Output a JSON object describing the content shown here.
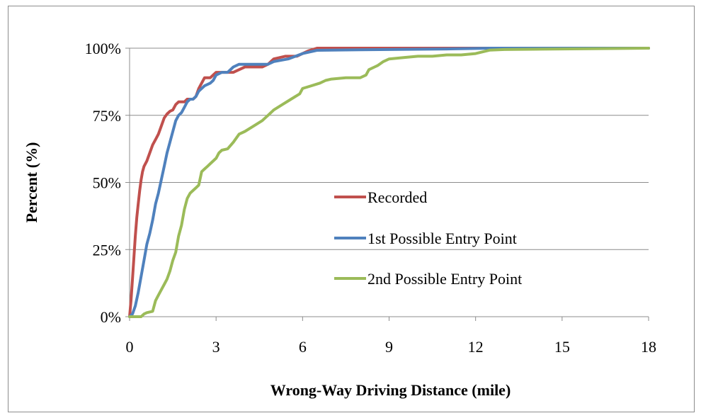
{
  "chart_data": {
    "type": "line",
    "title": "",
    "xlabel": "Wrong-Way Driving Distance (mile)",
    "ylabel": "Percent (%)",
    "xlim": [
      0,
      18
    ],
    "ylim": [
      0,
      100
    ],
    "xticks": [
      0,
      3,
      6,
      9,
      12,
      15,
      18
    ],
    "yticks": [
      0,
      25,
      50,
      75,
      100
    ],
    "x_tick_labels": [
      "0",
      "3",
      "6",
      "9",
      "12",
      "15",
      "18"
    ],
    "y_tick_labels": [
      "0%",
      "25%",
      "50%",
      "75%",
      "100%"
    ],
    "grid": "horizontal",
    "legend_position": "center-right",
    "series": [
      {
        "name": "Recorded",
        "color": "#c0504d",
        "points": [
          [
            0,
            0
          ],
          [
            0.05,
            6
          ],
          [
            0.1,
            14
          ],
          [
            0.15,
            22
          ],
          [
            0.2,
            30
          ],
          [
            0.25,
            37
          ],
          [
            0.3,
            42
          ],
          [
            0.35,
            47
          ],
          [
            0.4,
            51
          ],
          [
            0.45,
            54
          ],
          [
            0.5,
            56
          ],
          [
            0.6,
            58
          ],
          [
            0.7,
            61
          ],
          [
            0.8,
            64
          ],
          [
            0.9,
            66
          ],
          [
            1.0,
            68
          ],
          [
            1.1,
            71
          ],
          [
            1.2,
            74
          ],
          [
            1.3,
            75.5
          ],
          [
            1.4,
            76.5
          ],
          [
            1.5,
            77
          ],
          [
            1.6,
            79
          ],
          [
            1.7,
            80
          ],
          [
            1.8,
            80
          ],
          [
            1.9,
            80
          ],
          [
            2.0,
            81
          ],
          [
            2.1,
            81
          ],
          [
            2.2,
            81
          ],
          [
            2.3,
            82
          ],
          [
            2.4,
            85
          ],
          [
            2.5,
            87
          ],
          [
            2.6,
            89
          ],
          [
            2.7,
            89
          ],
          [
            2.8,
            89
          ],
          [
            2.9,
            90
          ],
          [
            3.0,
            91
          ],
          [
            3.2,
            91
          ],
          [
            3.4,
            91
          ],
          [
            3.6,
            91
          ],
          [
            3.8,
            92
          ],
          [
            4.0,
            93
          ],
          [
            4.2,
            93
          ],
          [
            4.4,
            93
          ],
          [
            4.6,
            93
          ],
          [
            4.8,
            94
          ],
          [
            5.0,
            96
          ],
          [
            5.2,
            96.5
          ],
          [
            5.4,
            97
          ],
          [
            5.6,
            97
          ],
          [
            5.8,
            97
          ],
          [
            6.0,
            98
          ],
          [
            6.2,
            99
          ],
          [
            6.5,
            100
          ],
          [
            18,
            100
          ]
        ]
      },
      {
        "name": "1st Possible Entry Point",
        "color": "#4f81bd",
        "points": [
          [
            0,
            0
          ],
          [
            0.1,
            1
          ],
          [
            0.2,
            4
          ],
          [
            0.3,
            9
          ],
          [
            0.4,
            15
          ],
          [
            0.5,
            21
          ],
          [
            0.6,
            27
          ],
          [
            0.7,
            31
          ],
          [
            0.8,
            36
          ],
          [
            0.9,
            42
          ],
          [
            1.0,
            46
          ],
          [
            1.1,
            51
          ],
          [
            1.2,
            56
          ],
          [
            1.3,
            61
          ],
          [
            1.4,
            65
          ],
          [
            1.5,
            69
          ],
          [
            1.6,
            73
          ],
          [
            1.7,
            75
          ],
          [
            1.8,
            76
          ],
          [
            1.9,
            78
          ],
          [
            2.0,
            80
          ],
          [
            2.1,
            81
          ],
          [
            2.2,
            81
          ],
          [
            2.3,
            82
          ],
          [
            2.4,
            84
          ],
          [
            2.5,
            85
          ],
          [
            2.6,
            86
          ],
          [
            2.7,
            86.5
          ],
          [
            2.8,
            87
          ],
          [
            2.9,
            88
          ],
          [
            3.0,
            90
          ],
          [
            3.2,
            91
          ],
          [
            3.4,
            91
          ],
          [
            3.6,
            93
          ],
          [
            3.8,
            94
          ],
          [
            4.0,
            94
          ],
          [
            4.5,
            94
          ],
          [
            4.8,
            94
          ],
          [
            5.0,
            95
          ],
          [
            5.5,
            96
          ],
          [
            6.0,
            98
          ],
          [
            6.5,
            99.2
          ],
          [
            7.0,
            99.3
          ],
          [
            8.0,
            99.4
          ],
          [
            9.0,
            99.5
          ],
          [
            10.0,
            99.6
          ],
          [
            11.0,
            99.7
          ],
          [
            12.0,
            99.9
          ],
          [
            12.5,
            100
          ],
          [
            18,
            100
          ]
        ]
      },
      {
        "name": "2nd Possible Entry Point",
        "color": "#9bbb59",
        "points": [
          [
            0,
            0
          ],
          [
            0.4,
            0
          ],
          [
            0.5,
            1
          ],
          [
            0.6,
            1.5
          ],
          [
            0.8,
            2
          ],
          [
            0.9,
            6
          ],
          [
            1.0,
            8
          ],
          [
            1.1,
            10
          ],
          [
            1.2,
            12
          ],
          [
            1.3,
            14
          ],
          [
            1.4,
            17
          ],
          [
            1.5,
            21
          ],
          [
            1.6,
            24
          ],
          [
            1.7,
            30
          ],
          [
            1.8,
            34
          ],
          [
            1.9,
            40
          ],
          [
            2.0,
            44
          ],
          [
            2.1,
            46
          ],
          [
            2.2,
            47
          ],
          [
            2.3,
            48
          ],
          [
            2.4,
            49
          ],
          [
            2.5,
            54
          ],
          [
            2.6,
            55
          ],
          [
            2.7,
            56
          ],
          [
            2.8,
            57
          ],
          [
            3.0,
            59
          ],
          [
            3.1,
            61
          ],
          [
            3.2,
            62
          ],
          [
            3.4,
            62.5
          ],
          [
            3.6,
            65
          ],
          [
            3.8,
            68
          ],
          [
            4.0,
            69
          ],
          [
            4.3,
            71
          ],
          [
            4.6,
            73
          ],
          [
            4.8,
            75
          ],
          [
            5.0,
            77
          ],
          [
            5.3,
            79
          ],
          [
            5.6,
            81
          ],
          [
            5.9,
            83
          ],
          [
            6.0,
            85
          ],
          [
            6.3,
            86
          ],
          [
            6.6,
            87
          ],
          [
            6.8,
            88
          ],
          [
            7.0,
            88.5
          ],
          [
            7.5,
            89
          ],
          [
            8.0,
            89
          ],
          [
            8.2,
            90
          ],
          [
            8.3,
            92
          ],
          [
            8.5,
            93
          ],
          [
            8.6,
            93.5
          ],
          [
            8.8,
            95
          ],
          [
            9.0,
            96
          ],
          [
            9.5,
            96.5
          ],
          [
            10.0,
            97
          ],
          [
            10.5,
            97
          ],
          [
            11.0,
            97.5
          ],
          [
            11.5,
            97.5
          ],
          [
            12.0,
            98
          ],
          [
            12.5,
            99.3
          ],
          [
            13.0,
            99.5
          ],
          [
            14.0,
            99.6
          ],
          [
            16.0,
            99.8
          ],
          [
            18.0,
            100
          ]
        ]
      }
    ]
  }
}
